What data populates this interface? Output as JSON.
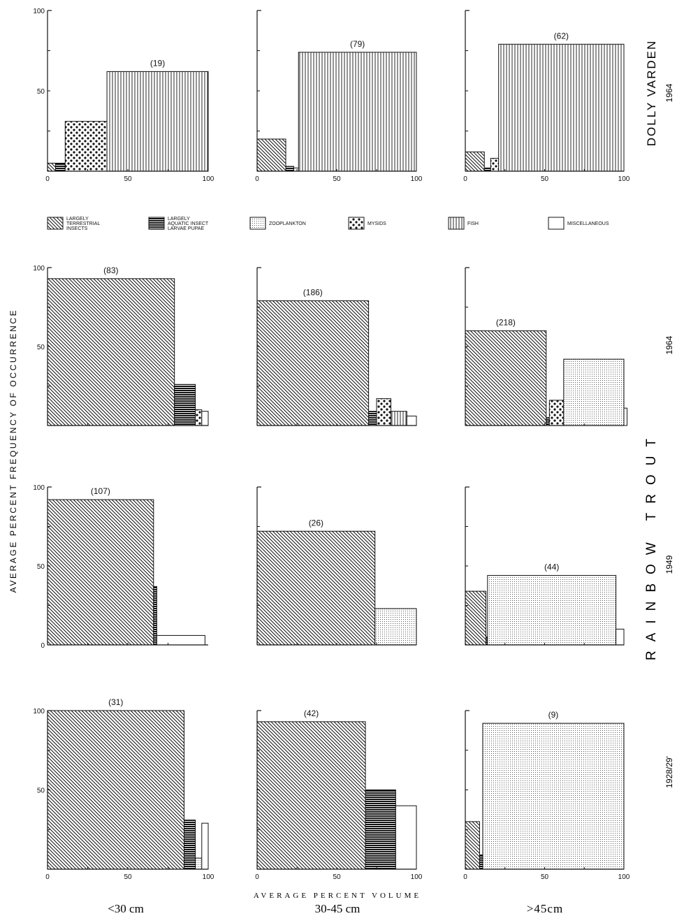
{
  "figure": {
    "ylabel": "AVERAGE PERCENT FREQUENCY OF OCCURRENCE",
    "xlabel": "AVERAGE PERCENT VOLUME",
    "columns": [
      "<30 cm",
      "30-45 cm",
      ">45cm"
    ],
    "species": [
      "DOLLY VARDEN",
      "RAINBOW TROUT"
    ],
    "row_years": [
      "1964",
      "1964",
      "1949",
      "1928/29'"
    ]
  },
  "legend": [
    {
      "key": "terrestrial",
      "label": "LARGELY TERRESTRIAL INSECTS"
    },
    {
      "key": "aquatic",
      "label": "LARGELY AQUATIC INSECT LARVAE PUPAE"
    },
    {
      "key": "zooplankton",
      "label": "ZOOPLANKTON"
    },
    {
      "key": "mysids",
      "label": "MYSIDS"
    },
    {
      "key": "fish",
      "label": "FISH"
    },
    {
      "key": "misc",
      "label": "MISCELLANEOUS"
    }
  ],
  "colors": {
    "ink": "#111111",
    "background": "#ffffff"
  },
  "chart_data": [
    {
      "type": "bar",
      "subtype": "variable-width",
      "row": 0,
      "col": 0,
      "n_label": "(19)",
      "xlim": [
        0,
        100
      ],
      "ylim": [
        0,
        100
      ],
      "xticks": [
        "0",
        "50",
        "100"
      ],
      "yticks": [
        "50",
        "100"
      ],
      "bars": [
        {
          "category": "terrestrial",
          "x0": 0,
          "x1": 5,
          "y": 5
        },
        {
          "category": "aquatic",
          "x0": 5,
          "x1": 11,
          "y": 5
        },
        {
          "category": "mysids",
          "x0": 11,
          "x1": 37,
          "y": 31
        },
        {
          "category": "fish",
          "x0": 37,
          "x1": 100,
          "y": 62
        }
      ]
    },
    {
      "type": "bar",
      "subtype": "variable-width",
      "row": 0,
      "col": 1,
      "n_label": "(79)",
      "xlim": [
        0,
        100
      ],
      "ylim": [
        0,
        100
      ],
      "xticks": [
        "0",
        "50",
        "100"
      ],
      "yticks": [],
      "bars": [
        {
          "category": "terrestrial",
          "x0": 0,
          "x1": 18,
          "y": 20
        },
        {
          "category": "aquatic",
          "x0": 18,
          "x1": 23,
          "y": 3
        },
        {
          "category": "misc",
          "x0": 23,
          "x1": 26,
          "y": 2
        },
        {
          "category": "fish",
          "x0": 26,
          "x1": 100,
          "y": 74
        }
      ]
    },
    {
      "type": "bar",
      "subtype": "variable-width",
      "row": 0,
      "col": 2,
      "n_label": "(62)",
      "xlim": [
        0,
        100
      ],
      "ylim": [
        0,
        100
      ],
      "xticks": [
        "0",
        "50",
        "100"
      ],
      "yticks": [],
      "bars": [
        {
          "category": "terrestrial",
          "x0": 0,
          "x1": 12,
          "y": 12
        },
        {
          "category": "aquatic",
          "x0": 12,
          "x1": 16,
          "y": 2
        },
        {
          "category": "mysids",
          "x0": 16,
          "x1": 21,
          "y": 8
        },
        {
          "category": "fish",
          "x0": 21,
          "x1": 100,
          "y": 79
        }
      ]
    },
    {
      "type": "bar",
      "subtype": "variable-width",
      "row": 1,
      "col": 0,
      "n_label": "(83)",
      "xlim": [
        0,
        100
      ],
      "ylim": [
        0,
        100
      ],
      "xticks": [],
      "yticks": [
        "50",
        "100"
      ],
      "bars": [
        {
          "category": "terrestrial",
          "x0": 0,
          "x1": 79,
          "y": 93
        },
        {
          "category": "aquatic",
          "x0": 79,
          "x1": 92,
          "y": 26
        },
        {
          "category": "mysids",
          "x0": 92,
          "x1": 96,
          "y": 10
        },
        {
          "category": "misc",
          "x0": 96,
          "x1": 100,
          "y": 9
        }
      ]
    },
    {
      "type": "bar",
      "subtype": "variable-width",
      "row": 1,
      "col": 1,
      "n_label": "(186)",
      "xlim": [
        0,
        100
      ],
      "ylim": [
        0,
        100
      ],
      "xticks": [],
      "yticks": [],
      "bars": [
        {
          "category": "terrestrial",
          "x0": 0,
          "x1": 70,
          "y": 79
        },
        {
          "category": "aquatic",
          "x0": 70,
          "x1": 75,
          "y": 9
        },
        {
          "category": "mysids",
          "x0": 75,
          "x1": 84,
          "y": 17
        },
        {
          "category": "fish",
          "x0": 84,
          "x1": 94,
          "y": 9
        },
        {
          "category": "misc",
          "x0": 94,
          "x1": 100,
          "y": 6
        }
      ]
    },
    {
      "type": "bar",
      "subtype": "variable-width",
      "row": 1,
      "col": 2,
      "n_label": "(218)",
      "xlim": [
        0,
        100
      ],
      "ylim": [
        0,
        100
      ],
      "xticks": [],
      "yticks": [],
      "bars": [
        {
          "category": "terrestrial",
          "x0": 0,
          "x1": 51,
          "y": 60
        },
        {
          "category": "aquatic",
          "x0": 51,
          "x1": 53,
          "y": 5
        },
        {
          "category": "mysids",
          "x0": 53,
          "x1": 62,
          "y": 16
        },
        {
          "category": "zooplankton",
          "x0": 62,
          "x1": 100,
          "y": 42
        },
        {
          "category": "misc",
          "x0": 100,
          "x1": 102,
          "y": 11
        }
      ]
    },
    {
      "type": "bar",
      "subtype": "variable-width",
      "row": 2,
      "col": 0,
      "n_label": "(107)",
      "xlim": [
        0,
        100
      ],
      "ylim": [
        0,
        100
      ],
      "xticks": [],
      "yticks": [
        "0",
        "50",
        "100"
      ],
      "bars": [
        {
          "category": "terrestrial",
          "x0": 0,
          "x1": 66,
          "y": 92
        },
        {
          "category": "aquatic",
          "x0": 66,
          "x1": 68,
          "y": 37
        },
        {
          "category": "misc",
          "x0": 68,
          "x1": 98,
          "y": 6
        }
      ]
    },
    {
      "type": "bar",
      "subtype": "variable-width",
      "row": 2,
      "col": 1,
      "n_label": "(26)",
      "xlim": [
        0,
        100
      ],
      "ylim": [
        0,
        100
      ],
      "xticks": [],
      "yticks": [],
      "bars": [
        {
          "category": "terrestrial",
          "x0": 0,
          "x1": 74,
          "y": 72
        },
        {
          "category": "zooplankton",
          "x0": 74,
          "x1": 100,
          "y": 23
        }
      ]
    },
    {
      "type": "bar",
      "subtype": "variable-width",
      "row": 2,
      "col": 2,
      "n_label": "(44)",
      "xlim": [
        0,
        100
      ],
      "ylim": [
        0,
        100
      ],
      "xticks": [],
      "yticks": [],
      "bars": [
        {
          "category": "terrestrial",
          "x0": 0,
          "x1": 13,
          "y": 34
        },
        {
          "category": "aquatic",
          "x0": 13,
          "x1": 14,
          "y": 5
        },
        {
          "category": "zooplankton",
          "x0": 14,
          "x1": 95,
          "y": 44
        },
        {
          "category": "misc",
          "x0": 95,
          "x1": 100,
          "y": 10
        }
      ]
    },
    {
      "type": "bar",
      "subtype": "variable-width",
      "row": 3,
      "col": 0,
      "n_label": "(31)",
      "xlim": [
        0,
        100
      ],
      "ylim": [
        0,
        100
      ],
      "xticks": [
        "0",
        "50",
        "100"
      ],
      "yticks": [
        "50",
        "100"
      ],
      "bars": [
        {
          "category": "terrestrial",
          "x0": 0,
          "x1": 85,
          "y": 100
        },
        {
          "category": "aquatic",
          "x0": 85,
          "x1": 92,
          "y": 31
        },
        {
          "category": "zooplankton",
          "x0": 92,
          "x1": 96,
          "y": 7
        },
        {
          "category": "misc",
          "x0": 96,
          "x1": 100,
          "y": 29
        }
      ]
    },
    {
      "type": "bar",
      "subtype": "variable-width",
      "row": 3,
      "col": 1,
      "n_label": "(42)",
      "xlim": [
        0,
        100
      ],
      "ylim": [
        0,
        100
      ],
      "xticks": [
        "0",
        "50",
        "100"
      ],
      "yticks": [],
      "bars": [
        {
          "category": "terrestrial",
          "x0": 0,
          "x1": 68,
          "y": 93
        },
        {
          "category": "aquatic",
          "x0": 68,
          "x1": 87,
          "y": 50
        },
        {
          "category": "misc",
          "x0": 87,
          "x1": 100,
          "y": 40
        }
      ]
    },
    {
      "type": "bar",
      "subtype": "variable-width",
      "row": 3,
      "col": 2,
      "n_label": "(9)",
      "xlim": [
        0,
        100
      ],
      "ylim": [
        0,
        100
      ],
      "xticks": [
        "0",
        "50",
        "100"
      ],
      "yticks": [],
      "bars": [
        {
          "category": "terrestrial",
          "x0": 0,
          "x1": 9,
          "y": 30
        },
        {
          "category": "aquatic",
          "x0": 9,
          "x1": 11,
          "y": 9
        },
        {
          "category": "zooplankton",
          "x0": 11,
          "x1": 100,
          "y": 92
        }
      ]
    }
  ]
}
